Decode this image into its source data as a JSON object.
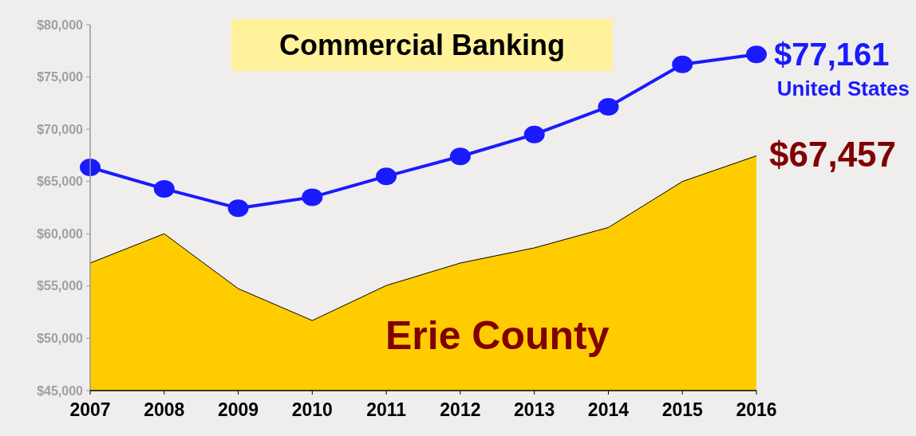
{
  "chart_data": {
    "type": "line",
    "title": "Commercial Banking",
    "categories": [
      "2007",
      "2008",
      "2009",
      "2010",
      "2011",
      "2012",
      "2013",
      "2014",
      "2015",
      "2016"
    ],
    "series": [
      {
        "name": "Erie County",
        "type": "area",
        "color": "#ffcc00",
        "values": [
          57200,
          60000,
          54750,
          51700,
          55050,
          57200,
          58650,
          60600,
          65000,
          67457
        ],
        "value_labels": [
          null,
          null,
          null,
          null,
          null,
          null,
          null,
          null,
          null,
          "$67,457"
        ]
      },
      {
        "name": "United States",
        "color": "#1a1aff",
        "marker": "circle",
        "values": [
          66350,
          64300,
          62450,
          63500,
          65500,
          67400,
          69500,
          72150,
          76200,
          77161
        ],
        "value_labels": [
          null,
          null,
          null,
          null,
          null,
          null,
          null,
          null,
          null,
          "$77,161"
        ]
      }
    ],
    "ylim": [
      45000,
      80000
    ],
    "yticks": [
      {
        "value": 45000,
        "label": "$45,000"
      },
      {
        "value": 50000,
        "label": "$50,000"
      },
      {
        "value": 55000,
        "label": "$55,000"
      },
      {
        "value": 60000,
        "label": "$60,000"
      },
      {
        "value": 65000,
        "label": "$65,000"
      },
      {
        "value": 70000,
        "label": "$70,000"
      },
      {
        "value": 75000,
        "label": "$75,000"
      },
      {
        "value": 80000,
        "label": "$80,000"
      }
    ],
    "grid": false,
    "legend": false
  }
}
